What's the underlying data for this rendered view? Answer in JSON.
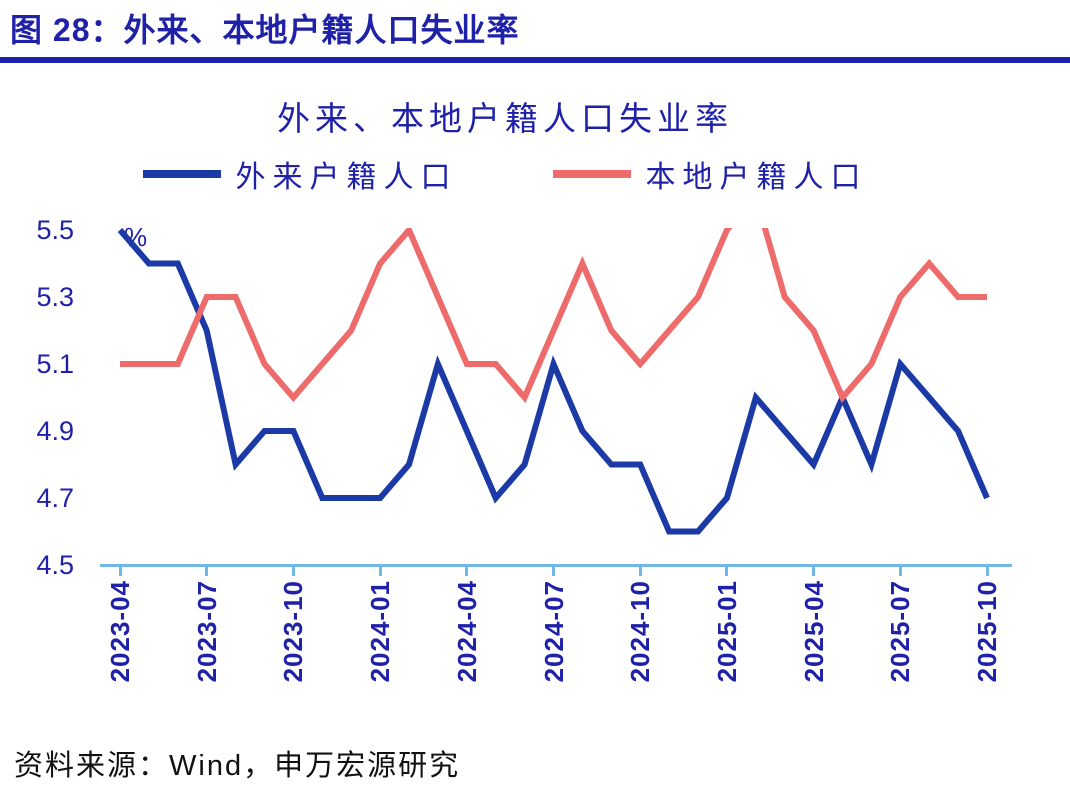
{
  "header": {
    "title": "图 28：外来、本地户籍人口失业率",
    "accent_color": "#1f21a8"
  },
  "chart_data": {
    "type": "line",
    "title": "外来、本地户籍人口失业率",
    "ylabel": "%",
    "ylim": [
      4.5,
      5.5
    ],
    "yticks": [
      5.5,
      5.3,
      5.1,
      4.9,
      4.7,
      4.5
    ],
    "grid": false,
    "legend_position": "top",
    "axis_color": "#70b8e8",
    "x_tick_step": 3,
    "x": [
      "2023-04",
      "2023-05",
      "2023-06",
      "2023-07",
      "2023-08",
      "2023-09",
      "2023-10",
      "2023-11",
      "2023-12",
      "2024-01",
      "2024-02",
      "2024-03",
      "2024-04",
      "2024-05",
      "2024-06",
      "2024-07",
      "2024-08",
      "2024-09",
      "2024-10",
      "2024-11",
      "2024-12",
      "2025-01",
      "2025-02",
      "2025-03",
      "2025-04",
      "2025-05",
      "2025-06",
      "2025-07",
      "2025-08",
      "2025-09",
      "2025-10"
    ],
    "series": [
      {
        "name": "外来户籍人口",
        "color": "#1b3aa6",
        "values": [
          5.5,
          5.4,
          5.4,
          5.2,
          4.8,
          4.9,
          4.9,
          4.7,
          4.7,
          4.7,
          4.8,
          5.1,
          4.9,
          4.7,
          4.8,
          5.1,
          4.9,
          4.8,
          4.8,
          4.6,
          4.6,
          4.7,
          5.0,
          4.9,
          4.8,
          5.0,
          4.8,
          5.1,
          5.0,
          4.9,
          4.7
        ]
      },
      {
        "name": "本地户籍人口",
        "color": "#ee6b6b",
        "values": [
          5.1,
          5.1,
          5.1,
          5.3,
          5.3,
          5.1,
          5.0,
          5.1,
          5.2,
          5.4,
          5.5,
          5.3,
          5.1,
          5.1,
          5.0,
          5.2,
          5.4,
          5.2,
          5.1,
          5.2,
          5.3,
          5.5,
          5.6,
          5.3,
          5.2,
          5.0,
          5.1,
          5.3,
          5.4,
          5.3,
          5.3
        ]
      }
    ]
  },
  "footer": {
    "source": "资料来源：Wind，申万宏源研究"
  }
}
